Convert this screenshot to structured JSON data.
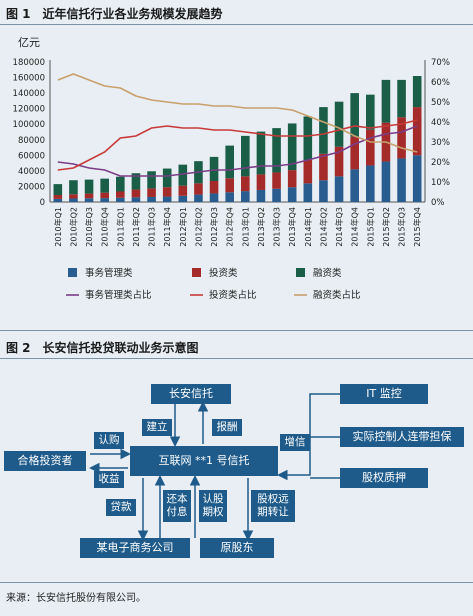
{
  "figure1": {
    "title": "图 1　近年信托行业各业务规模发展趋势"
  },
  "figure2": {
    "title": "图 2　长安信托投贷联动业务示意图"
  },
  "chart_data": {
    "type": "bar",
    "unit_label": "亿元",
    "categories": [
      "2010年Q1",
      "2010年Q2",
      "2010年Q3",
      "2010年Q4",
      "2011年Q1",
      "2011年Q2",
      "2011年Q3",
      "2011年Q4",
      "2012年Q1",
      "2012年Q2",
      "2012年Q3",
      "2012年Q4",
      "2013年Q1",
      "2013年Q2",
      "2013年Q3",
      "2013年Q4",
      "2014年Q1",
      "2014年Q2",
      "2014年Q3",
      "2014年Q4",
      "2015年Q1",
      "2015年Q2",
      "2015年Q3",
      "2015年Q4"
    ],
    "ylim_left": [
      0,
      180000
    ],
    "yticks_left": [
      0,
      20000,
      40000,
      60000,
      80000,
      100000,
      120000,
      140000,
      160000,
      180000
    ],
    "ylim_right": [
      0,
      70
    ],
    "yticks_right": [
      "0%",
      "10%",
      "20%",
      "30%",
      "40%",
      "50%",
      "60%",
      "70%"
    ],
    "yticks_right_values": [
      0,
      10,
      20,
      30,
      40,
      50,
      60,
      70
    ],
    "bar_series": [
      {
        "name": "事务管理类",
        "color": "#2a5d8f",
        "values": [
          4000,
          4500,
          4800,
          5000,
          5500,
          6000,
          6500,
          7000,
          8000,
          9500,
          11000,
          12500,
          14000,
          15500,
          17000,
          19000,
          24000,
          28000,
          33000,
          42000,
          47000,
          52000,
          56000,
          60000
        ]
      },
      {
        "name": "投资类",
        "color": "#a52a2a",
        "values": [
          5000,
          5500,
          6000,
          7000,
          8000,
          10000,
          11000,
          12000,
          13000,
          14500,
          16000,
          18000,
          19000,
          20000,
          21000,
          22000,
          30000,
          34000,
          38000,
          42000,
          46000,
          50000,
          53000,
          62000
        ]
      },
      {
        "name": "融资类",
        "color": "#1a5e47",
        "values": [
          14000,
          18000,
          18000,
          18000,
          19000,
          21000,
          22000,
          24000,
          27000,
          28500,
          31000,
          42000,
          52000,
          55000,
          57000,
          60000,
          56000,
          60000,
          58000,
          56000,
          45000,
          55000,
          48000,
          40000
        ]
      }
    ],
    "line_series": [
      {
        "name": "事务管理类占比",
        "color": "#7a3d87",
        "values": [
          20,
          19,
          17,
          16,
          13,
          13,
          13,
          13,
          14,
          15,
          16,
          16,
          17,
          18,
          18,
          19,
          21,
          23,
          25,
          29,
          32,
          34,
          35,
          38
        ]
      },
      {
        "name": "投资类占比",
        "color": "#c83a3a",
        "values": [
          16,
          17,
          21,
          25,
          32,
          33,
          37,
          38,
          37,
          37,
          36,
          36,
          35,
          34,
          33,
          33,
          33,
          34,
          36,
          38,
          37,
          38,
          39,
          41
        ]
      },
      {
        "name": "融资类占比",
        "color": "#c8a06e",
        "values": [
          61,
          64,
          61,
          58,
          57,
          53,
          51,
          50,
          49,
          49,
          48,
          48,
          47,
          47,
          47,
          46,
          43,
          40,
          37,
          33,
          30,
          30,
          27,
          25
        ]
      }
    ],
    "legend_position": "bottom",
    "grid": false
  },
  "diagram": {
    "nodes": {
      "trust": "长安信托",
      "it_monitor": "IT 监控",
      "guarantee": "实际控制人连带担保",
      "equity_pledge": "股权质押",
      "investor": "合格投资者",
      "center": "互联网 **1 号信托",
      "ecom": "某电子商务公司",
      "shareholder": "原股东"
    },
    "labels": {
      "establish": "建立",
      "reward": "报酬",
      "credit_enhance": "增信",
      "subscribe": "认购",
      "income": "收益",
      "loan": "贷款",
      "repay_1": "还本",
      "repay_2": "付息",
      "subscription_option_1": "认股",
      "subscription_option_2": "期权",
      "equity_transfer_1": "股权远",
      "equity_transfer_2": "期转让"
    }
  },
  "source_note": "来源：长安信托股份有限公司。"
}
